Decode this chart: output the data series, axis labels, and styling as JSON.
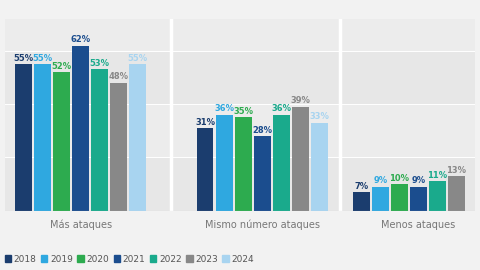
{
  "groups": [
    "Más ataques",
    "Mismo número ataques",
    "Menos ataques"
  ],
  "years": [
    "2018",
    "2019",
    "2020",
    "2021",
    "2022",
    "2023",
    "2024"
  ],
  "colors": {
    "2018": "#1b3d6e",
    "2019": "#2fa8e0",
    "2020": "#2dab4f",
    "2021": "#1b4d8e",
    "2022": "#1aaa8c",
    "2023": "#888888",
    "2024": "#a8d4f0"
  },
  "group_values": {
    "Más ataques": [
      55,
      55,
      52,
      62,
      53,
      48,
      55
    ],
    "Mismo número ataques": [
      31,
      36,
      35,
      28,
      36,
      39,
      33
    ],
    "Menos ataques": [
      7,
      9,
      10,
      9,
      11,
      13,
      null
    ]
  },
  "label_colors": {
    "2018": "#1b3d6e",
    "2019": "#2fa8e0",
    "2020": "#2dab4f",
    "2021": "#1b4d8e",
    "2022": "#1aaa8c",
    "2023": "#888888",
    "2024": "#a8d4f0"
  },
  "bg_color": "#f2f2f2",
  "panel_bg": "#ebebeb",
  "divider_color": "#ffffff",
  "bar_width": 0.105,
  "ylim": [
    0,
    72
  ],
  "label_fontsize": 6.0,
  "group_label_fontsize": 7.0,
  "legend_fontsize": 6.5
}
